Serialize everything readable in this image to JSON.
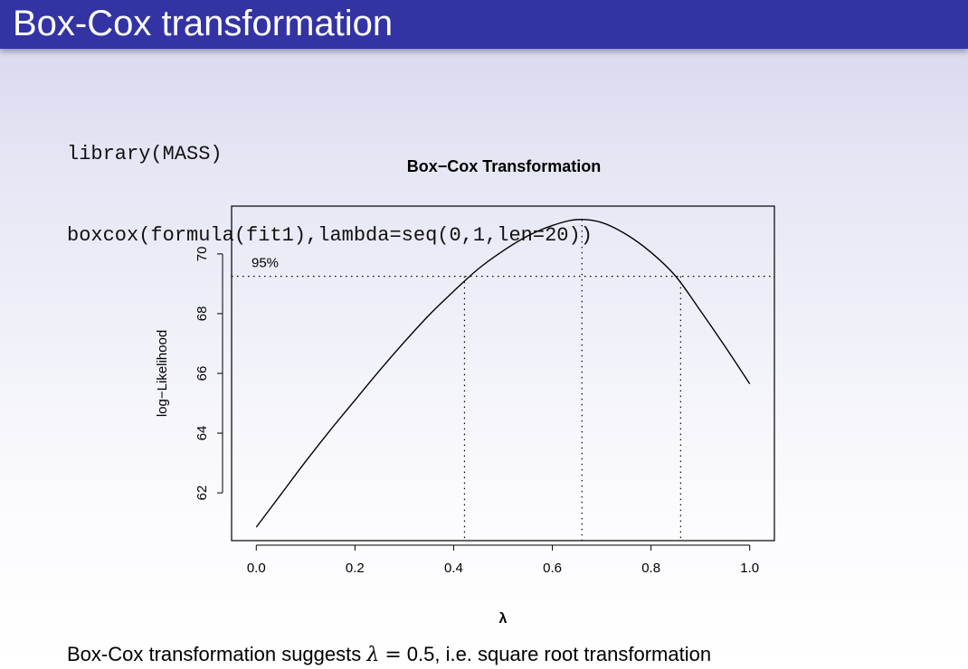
{
  "slide": {
    "title": "Box-Cox transformation"
  },
  "code": {
    "lines": [
      "library(MASS)",
      "boxcox(formula(fit1),lambda=seq(0,1,len=20))"
    ]
  },
  "caption": {
    "prefix": "Box-Cox transformation suggests ",
    "symbol": "λ",
    "equals": "=",
    "suffix": "0.5, i.e. square root transformation"
  },
  "chart_data": {
    "type": "line",
    "title": "Box−Cox Transformation",
    "xlabel": "λ",
    "ylabel": "log−Likelihood",
    "xlim": [
      -0.05,
      1.05
    ],
    "ylim": [
      60.4,
      71.6
    ],
    "xticks": [
      "0.0",
      "0.2",
      "0.4",
      "0.6",
      "0.8",
      "1.0"
    ],
    "yticks": [
      "62",
      "64",
      "66",
      "68",
      "70"
    ],
    "grid": false,
    "series": [
      {
        "x": [
          0.0,
          0.05,
          0.1,
          0.15,
          0.2,
          0.25,
          0.3,
          0.35,
          0.4,
          0.45,
          0.5,
          0.55,
          0.6,
          0.65,
          0.7,
          0.75,
          0.8,
          0.85,
          0.9,
          0.95,
          1.0
        ],
        "y": [
          60.85,
          61.95,
          63.05,
          64.1,
          65.1,
          66.1,
          67.05,
          67.95,
          68.75,
          69.5,
          70.1,
          70.6,
          70.95,
          71.15,
          71.05,
          70.65,
          70.05,
          69.25,
          68.1,
          66.9,
          65.65
        ],
        "color": "#000000"
      }
    ],
    "annotations": {
      "ci_label": "95%",
      "ci_level_y": 69.25,
      "ci_lower_x": 0.422,
      "ci_upper_x": 0.86,
      "max_x": 0.66,
      "max_y": 71.15
    }
  }
}
